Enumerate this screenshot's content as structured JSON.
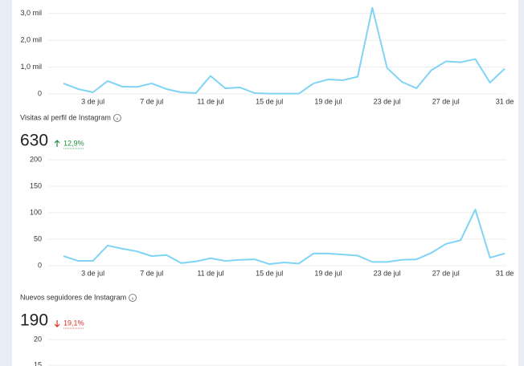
{
  "chart_data": [
    {
      "type": "line",
      "color": "#7fd4f5",
      "categories": [
        null,
        null,
        "3 de jul",
        null,
        null,
        null,
        "7 de jul",
        null,
        null,
        null,
        "11 de jul",
        null,
        null,
        null,
        "15 de jul",
        null,
        null,
        null,
        "19 de jul",
        null,
        null,
        null,
        "23 de jul",
        null,
        null,
        null,
        "27 de jul",
        null,
        null,
        null,
        "31 de"
      ],
      "values": [
        390,
        180,
        60,
        480,
        270,
        260,
        390,
        180,
        60,
        30,
        670,
        210,
        240,
        30,
        10,
        10,
        10,
        390,
        540,
        510,
        640,
        3210,
        970,
        450,
        210,
        880,
        1210,
        1180,
        1300,
        420,
        940
      ],
      "ylim": [
        0,
        3500
      ],
      "yticks": [
        0,
        {
          "value": 1000,
          "label": "1,0 mil"
        },
        {
          "value": 2000,
          "label": "2,0 mil"
        },
        {
          "value": 3000,
          "label": "3,0 mil"
        }
      ],
      "grid": true
    },
    {
      "type": "line",
      "color": "#7fd4f5",
      "categories": [
        null,
        null,
        "3 de jul",
        null,
        null,
        null,
        "7 de jul",
        null,
        null,
        null,
        "11 de jul",
        null,
        null,
        null,
        "15 de jul",
        null,
        null,
        null,
        "19 de jul",
        null,
        null,
        null,
        "23 de jul",
        null,
        null,
        null,
        "27 de jul",
        null,
        null,
        null,
        "31 de"
      ],
      "values": [
        18,
        9,
        9,
        38,
        32,
        27,
        18,
        20,
        5,
        8,
        14,
        9,
        11,
        12,
        3,
        6,
        4,
        23,
        23,
        21,
        19,
        7,
        7,
        11,
        12,
        24,
        41,
        48,
        106,
        15,
        23
      ],
      "ylim": [
        0,
        200
      ],
      "yticks": [
        0,
        50,
        100,
        150,
        200
      ],
      "grid": true
    },
    {
      "type": "line",
      "color": "#7fd4f5",
      "ylim": [
        0,
        20
      ],
      "yticks": [
        15,
        20
      ],
      "grid": true
    }
  ],
  "sections": [
    {
      "title": "Visitas al perfil de Instagram",
      "value": 630,
      "change": "12,9%",
      "direction": "up"
    },
    {
      "title": "Nuevos seguidores de Instagram",
      "value": 190,
      "change": "19,1%",
      "direction": "down"
    }
  ]
}
